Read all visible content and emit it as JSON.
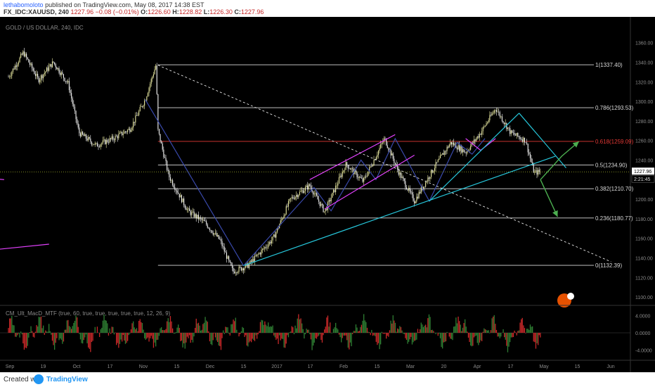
{
  "header": {
    "publisher": "lethabomoloto",
    "published_text": "published on TradingView.com, May 08, 2017 14:38 EST",
    "symbol": "FX_IDC:XAUUSD, 240",
    "last": "1227.96",
    "change": "−0.08 (−0.01%)",
    "o_label": "O:",
    "o": "1226.60",
    "h_label": "H:",
    "h": "1228.82",
    "l_label": "L:",
    "l": "1226.30",
    "c_label": "C:",
    "c": "1227.96"
  },
  "footer": {
    "created_with": "Created with",
    "brand": "TradingView"
  },
  "chart_data": {
    "type": "candlestick",
    "title": "GOLD / US DOLLAR, 240, IDC",
    "price_axis": {
      "ticks": [
        "1360.00",
        "1340.00",
        "1320.00",
        "1300.00",
        "1280.00",
        "1260.00",
        "1240.00",
        "1220.00",
        "1200.00",
        "1180.00",
        "1160.00",
        "1140.00",
        "1120.00",
        "1100.00"
      ],
      "range": [
        1095,
        1372
      ]
    },
    "time_axis": {
      "labels": [
        "Sep",
        "19",
        "Oct",
        "17",
        "Nov",
        "15",
        "Dec",
        "15",
        "2017",
        "17",
        "Feb",
        "15",
        "Mar",
        "20",
        "Apr",
        "17",
        "May",
        "15",
        "Jun"
      ]
    },
    "last_price": "1227.96",
    "countdown": "2:21:45",
    "fibonacci": [
      {
        "level": "1",
        "price": 1337.4,
        "label": "1(1337.40)"
      },
      {
        "level": "0.786",
        "price": 1293.53,
        "label": "0.786(1293.53)"
      },
      {
        "level": "0.618",
        "price": 1259.09,
        "label": "0.618(1259.09)",
        "color": "#e53935"
      },
      {
        "level": "0.5",
        "price": 1234.9,
        "label": "0.5(1234.90)"
      },
      {
        "level": "0.382",
        "price": 1210.7,
        "label": "0.382(1210.70)"
      },
      {
        "level": "0.236",
        "price": 1180.77,
        "label": "0.236(1180.77)"
      },
      {
        "level": "0",
        "price": 1132.39,
        "label": "0(1132.39)"
      }
    ],
    "price_path": [
      {
        "t": "Sep 01",
        "p": 1325
      },
      {
        "t": "Sep 08",
        "p": 1350
      },
      {
        "t": "Sep 15",
        "p": 1322
      },
      {
        "t": "Sep 22",
        "p": 1340
      },
      {
        "t": "Sep 29",
        "p": 1318
      },
      {
        "t": "Oct 04",
        "p": 1268
      },
      {
        "t": "Oct 12",
        "p": 1255
      },
      {
        "t": "Oct 20",
        "p": 1262
      },
      {
        "t": "Oct 28",
        "p": 1272
      },
      {
        "t": "Nov 04",
        "p": 1302
      },
      {
        "t": "Nov 09",
        "p": 1337
      },
      {
        "t": "Nov 10",
        "p": 1270
      },
      {
        "t": "Nov 15",
        "p": 1224
      },
      {
        "t": "Nov 24",
        "p": 1188
      },
      {
        "t": "Dec 02",
        "p": 1176
      },
      {
        "t": "Dec 09",
        "p": 1158
      },
      {
        "t": "Dec 15",
        "p": 1126
      },
      {
        "t": "Dec 22",
        "p": 1132
      },
      {
        "t": "Jan 03",
        "p": 1160
      },
      {
        "t": "Jan 11",
        "p": 1200
      },
      {
        "t": "Jan 20",
        "p": 1214
      },
      {
        "t": "Jan 27",
        "p": 1187
      },
      {
        "t": "Feb 06",
        "p": 1236
      },
      {
        "t": "Feb 14",
        "p": 1218
      },
      {
        "t": "Feb 24",
        "p": 1262
      },
      {
        "t": "Mar 03",
        "p": 1226
      },
      {
        "t": "Mar 10",
        "p": 1198
      },
      {
        "t": "Mar 20",
        "p": 1235
      },
      {
        "t": "Mar 27",
        "p": 1258
      },
      {
        "t": "Apr 03",
        "p": 1248
      },
      {
        "t": "Apr 10",
        "p": 1268
      },
      {
        "t": "Apr 17",
        "p": 1293
      },
      {
        "t": "Apr 24",
        "p": 1268
      },
      {
        "t": "May 01",
        "p": 1260
      },
      {
        "t": "May 05",
        "p": 1227
      },
      {
        "t": "May 08",
        "p": 1228
      }
    ],
    "indicator": {
      "name": "CM_Ult_MacD_MTF (true, 60, true, true, true, true, true, 12, 26, 9)",
      "ticks": [
        "4.0000",
        "0.0000",
        "-4.0000"
      ],
      "range": [
        -6,
        6
      ]
    },
    "drawings": [
      {
        "kind": "trendline",
        "color": "#3949ab",
        "points": [
          [
            "Nov 04",
            1302
          ],
          [
            "Dec 20",
            1132
          ]
        ]
      },
      {
        "kind": "trendline",
        "color": "#3949ab",
        "points": [
          [
            "Dec 20",
            1132
          ],
          [
            "Jan 22",
            1212
          ],
          [
            "Jan 30",
            1188
          ],
          [
            "Feb 13",
            1240
          ],
          [
            "Feb 20",
            1220
          ],
          [
            "Mar 01",
            1262
          ],
          [
            "Mar 17",
            1198
          ],
          [
            "Mar 30",
            1258
          ],
          [
            "Apr 06",
            1246
          ],
          [
            "Apr 12",
            1262
          ]
        ]
      },
      {
        "kind": "trendline",
        "color": "#e040fb",
        "points": [
          [
            "Jan 20",
            1220
          ],
          [
            "Mar 01",
            1266
          ]
        ]
      },
      {
        "kind": "trendline",
        "color": "#e040fb",
        "points": [
          [
            "Jan 27",
            1190
          ],
          [
            "Mar 10",
            1245
          ]
        ]
      },
      {
        "kind": "trendline",
        "color": "#e040fb",
        "points": [
          [
            "Apr 03",
            1262
          ],
          [
            "Apr 10",
            1250
          ],
          [
            "Apr 17",
            1262
          ]
        ]
      },
      {
        "kind": "trendline",
        "color": "#26c6da",
        "points": [
          [
            "Dec 20",
            1132
          ],
          [
            "May 15",
            1244
          ]
        ]
      },
      {
        "kind": "trendline",
        "color": "#26c6da",
        "points": [
          [
            "Mar 17",
            1198
          ],
          [
            "Apr 28",
            1288
          ]
        ]
      },
      {
        "kind": "trendline",
        "color": "#26c6da",
        "points": [
          [
            "Apr 28",
            1288
          ],
          [
            "May 20",
            1232
          ]
        ]
      },
      {
        "kind": "trendline",
        "color": "#ffffff",
        "dashed": true,
        "points": [
          [
            "Nov 10",
            1337
          ],
          [
            "Jun 10",
            1136
          ]
        ]
      },
      {
        "kind": "trendline",
        "color": "#e040fb",
        "points": [
          [
            "Aug 15",
            1223
          ],
          [
            "Aug 30",
            1220
          ]
        ]
      },
      {
        "kind": "trendline",
        "color": "#e040fb",
        "points": [
          [
            "Aug 15",
            1146
          ],
          [
            "Sep 20",
            1154
          ]
        ]
      },
      {
        "kind": "arrow",
        "color": "#4caf50",
        "points": [
          [
            "May 08",
            1220
          ],
          [
            "May 18",
            1244
          ],
          [
            "May 26",
            1259
          ]
        ]
      },
      {
        "kind": "arrow",
        "color": "#4caf50",
        "points": [
          [
            "May 08",
            1220
          ],
          [
            "May 16",
            1182
          ]
        ]
      }
    ]
  }
}
